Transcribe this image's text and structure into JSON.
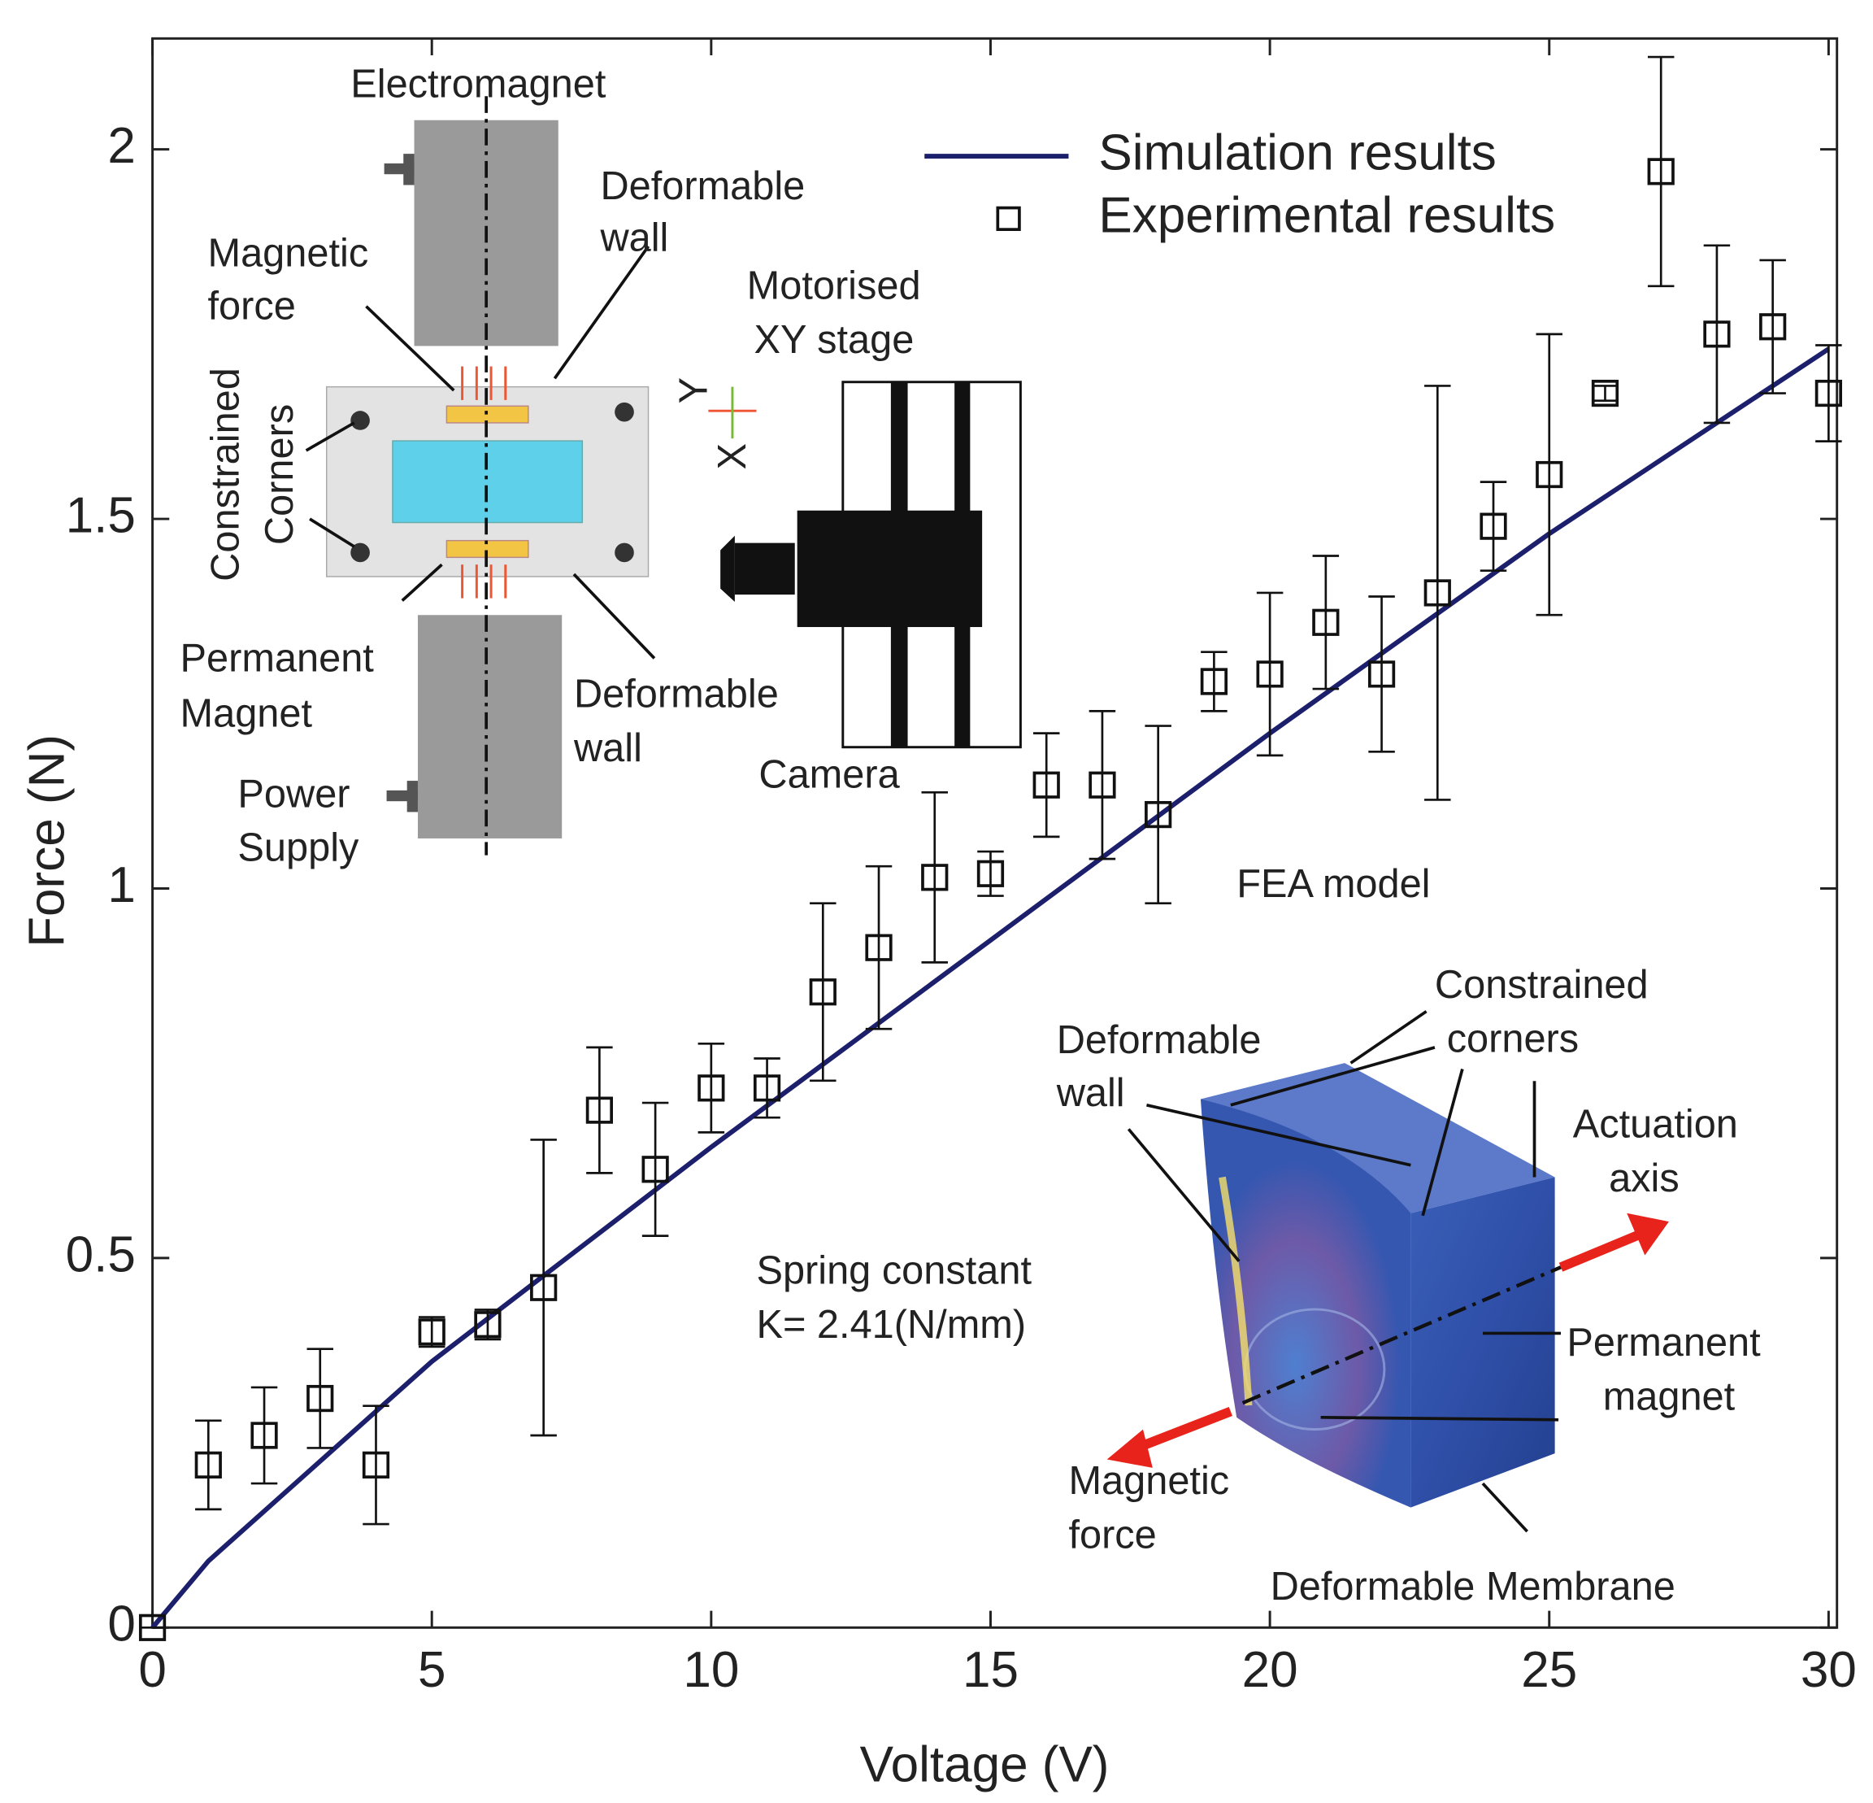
{
  "chart_data": {
    "type": "scatter",
    "xlabel": "Voltage (V)",
    "ylabel": "Force (N)",
    "xlim": [
      0,
      30.15
    ],
    "ylim": [
      0,
      2.15
    ],
    "xticks": [
      0,
      5,
      10,
      15,
      20,
      25,
      30
    ],
    "yticks": [
      0,
      0.5,
      1,
      1.5,
      2
    ],
    "series": [
      {
        "name": "Simulation results",
        "color": "#1c1f6b",
        "x": [
          0,
          1,
          5,
          10,
          15,
          20,
          25,
          30
        ],
        "values": [
          0,
          0.09,
          0.36,
          0.65,
          0.93,
          1.21,
          1.48,
          1.73
        ]
      },
      {
        "name": "Experimental results",
        "color": "#111111",
        "x": [
          0,
          1,
          2,
          3,
          4,
          5,
          6,
          7,
          8,
          9,
          10,
          11,
          12,
          13,
          14,
          15,
          16,
          17,
          18,
          19,
          20,
          21,
          22,
          23,
          24,
          25,
          26,
          27,
          28,
          29,
          30
        ],
        "values": [
          0,
          0.22,
          0.26,
          0.31,
          0.22,
          0.4,
          0.41,
          0.46,
          0.7,
          0.62,
          0.73,
          0.73,
          0.86,
          0.92,
          1.015,
          1.02,
          1.14,
          1.14,
          1.1,
          1.28,
          1.29,
          1.36,
          1.29,
          1.4,
          1.49,
          1.56,
          1.67,
          1.97,
          1.75,
          1.76,
          1.67
        ],
        "errors": [
          0,
          0.06,
          0.065,
          0.067,
          0.08,
          0.02,
          0.02,
          0.2,
          0.085,
          0.09,
          0.06,
          0.04,
          0.12,
          0.11,
          0.115,
          0.03,
          0.07,
          0.1,
          0.12,
          0.04,
          0.11,
          0.09,
          0.105,
          0.28,
          0.06,
          0.19,
          0.01,
          0.155,
          0.12,
          0.09,
          0.065
        ]
      }
    ],
    "annotations": [
      [
        "Electromagnet"
      ],
      [
        "Deformable",
        "wall"
      ],
      [
        "Magnetic",
        "force"
      ],
      [
        "Constrained",
        "Corners"
      ],
      [
        "Permanent",
        "Magnet"
      ],
      [
        "Deformable",
        "wall"
      ],
      [
        "Power",
        "Supply"
      ],
      [
        "Motorised",
        "XY stage"
      ],
      [
        "Camera"
      ],
      [
        "Y"
      ],
      [
        "X"
      ],
      [
        "FEA model"
      ],
      [
        "Constrained",
        "corners"
      ],
      [
        "Deformable",
        "wall"
      ],
      [
        "Actuation",
        "axis"
      ],
      [
        "Spring constant",
        "K= 2.41(N/mm)"
      ],
      [
        "Permanent",
        "magnet"
      ],
      [
        "Magnetic",
        "force"
      ],
      [
        "Deformable Membrane"
      ]
    ]
  }
}
